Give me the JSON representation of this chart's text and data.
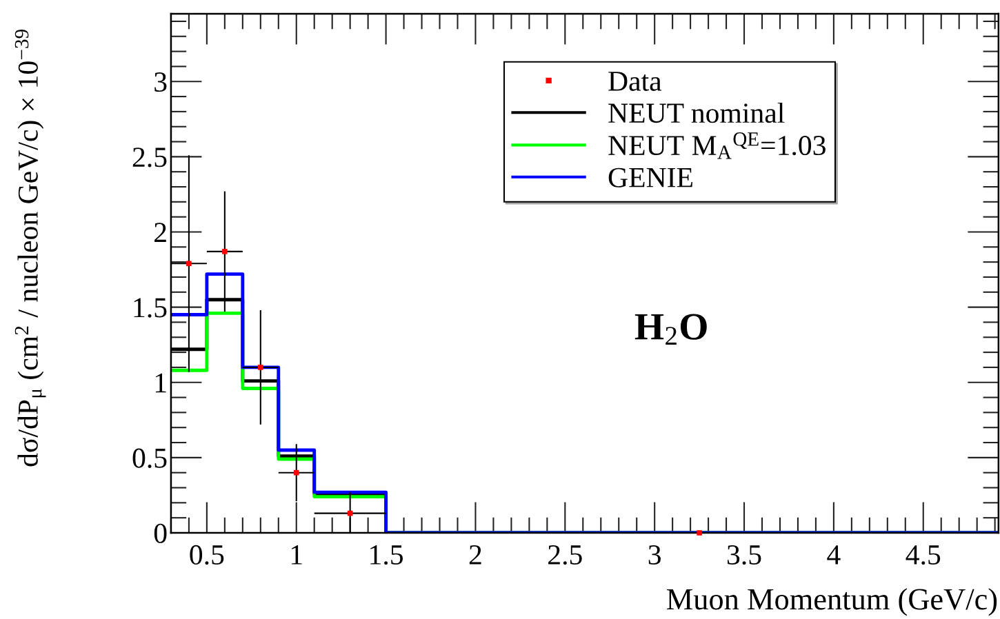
{
  "chart_data": {
    "type": "histogram",
    "xlabel": "Muon Momentum (GeV/c)",
    "ylabel": "dσ/dP$_{μ}$ (cm$^{2}$ / nucleon GeV/c) × 10$^{−39}$",
    "bins": [
      0.3,
      0.5,
      0.7,
      0.9,
      1.1,
      1.5,
      4.92
    ],
    "xlim": [
      0.3,
      4.92
    ],
    "ylim": [
      0,
      3.45
    ],
    "xticks": [
      0.5,
      1,
      1.5,
      2,
      2.5,
      3,
      3.5,
      4,
      4.5
    ],
    "yticks": [
      0,
      0.5,
      1,
      1.5,
      2,
      2.5,
      3
    ],
    "series": [
      {
        "name": "Data",
        "type": "scatter",
        "color": "#ff0000",
        "marker": "square",
        "x": [
          0.4,
          0.6,
          0.8,
          1.0,
          1.3,
          3.25
        ],
        "values": [
          1.79,
          1.87,
          1.1,
          0.4,
          0.13,
          0.0
        ],
        "errors": [
          [
            1.07,
            2.51
          ],
          [
            1.47,
            2.27
          ],
          [
            0.72,
            1.48
          ],
          [
            0.21,
            0.59
          ],
          [
            0.0,
            0.27
          ],
          null
        ],
        "xerrors": [
          [
            0.3,
            0.5
          ],
          [
            0.5,
            0.7
          ],
          [
            0.7,
            0.9
          ],
          [
            0.9,
            1.1
          ],
          [
            1.1,
            1.5
          ],
          null
        ]
      },
      {
        "name": "NEUT nominal",
        "color": "#000000",
        "values": [
          1.22,
          1.55,
          1.01,
          0.51,
          0.26,
          0.0
        ]
      },
      {
        "name": "NEUT M$_{A}$$^{QE}$=1.03",
        "color": "#00ff00",
        "values": [
          1.08,
          1.46,
          0.96,
          0.49,
          0.24,
          0.0
        ]
      },
      {
        "name": "GENIE",
        "color": "#0000ff",
        "values": [
          1.45,
          1.72,
          1.1,
          0.55,
          0.27,
          0.0
        ]
      }
    ],
    "annotations": [
      "H$_{2}$O"
    ],
    "legend": "top right",
    "grid": false
  }
}
